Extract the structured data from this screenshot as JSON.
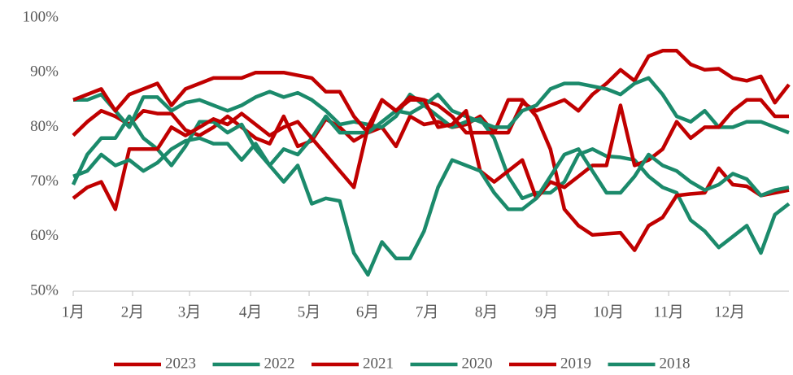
{
  "chart_data": {
    "type": "line",
    "x": [
      0,
      1,
      2,
      3,
      4,
      5,
      6,
      7,
      8,
      9,
      10,
      11,
      12,
      13,
      14,
      15,
      16,
      17,
      18,
      19,
      20,
      21,
      22,
      23,
      24,
      25,
      26,
      27,
      28,
      29,
      30,
      31,
      32,
      33,
      34,
      35,
      36,
      37,
      38,
      39,
      40,
      41,
      42,
      43,
      44,
      45,
      46,
      47,
      48,
      49,
      50,
      51
    ],
    "xlim": [
      0,
      51
    ],
    "xticks": [
      {
        "value": 0,
        "label": "1月"
      },
      {
        "value": 4.23,
        "label": "2月"
      },
      {
        "value": 8.29,
        "label": "3月"
      },
      {
        "value": 12.64,
        "label": "4月"
      },
      {
        "value": 16.81,
        "label": "5月"
      },
      {
        "value": 20.99,
        "label": "6月"
      },
      {
        "value": 25.22,
        "label": "7月"
      },
      {
        "value": 29.45,
        "label": "8月"
      },
      {
        "value": 33.74,
        "label": "9月"
      },
      {
        "value": 38.14,
        "label": "10月"
      },
      {
        "value": 42.43,
        "label": "11月"
      },
      {
        "value": 46.78,
        "label": "12月"
      }
    ],
    "ylim": [
      50,
      100
    ],
    "yticks": [
      {
        "value": 50,
        "label": "50%"
      },
      {
        "value": 60,
        "label": "60%"
      },
      {
        "value": 70,
        "label": "70%"
      },
      {
        "value": 80,
        "label": "80%"
      },
      {
        "value": 90,
        "label": "90%"
      },
      {
        "value": 100,
        "label": "100%"
      }
    ],
    "grid": false,
    "legend": "bottom",
    "series": [
      {
        "name": "2023",
        "color": "#c00000",
        "values": [
          78.5,
          81,
          83,
          82,
          80.5,
          83,
          82.5,
          82.5,
          79.5,
          78.5,
          80,
          82,
          80,
          78,
          77,
          82,
          76.5,
          77.5,
          81.5,
          80,
          77.5,
          79,
          80,
          76.5,
          82,
          80.5,
          81,
          80,
          80.5,
          82,
          79,
          79,
          84.5,
          83,
          84,
          85,
          83,
          86,
          88,
          90.5,
          88.5,
          93,
          94,
          94,
          91.5,
          90.5,
          90.7,
          89,
          88.5,
          89.3,
          84.5,
          87.8
        ]
      },
      {
        "name": "2022",
        "color": "#1b8a6b",
        "values": [
          85,
          85,
          86,
          83,
          80,
          85.5,
          85.5,
          83,
          84.5,
          85,
          84,
          83,
          84,
          85.5,
          86.5,
          85.5,
          86.3,
          85,
          83,
          80.5,
          81,
          80.5,
          80,
          82,
          86,
          84,
          82,
          80,
          81,
          81.5,
          78,
          71,
          67,
          68,
          68,
          70,
          75,
          76,
          74.7,
          74.5,
          74,
          71,
          69,
          68,
          63,
          61,
          58,
          60,
          62,
          57,
          64,
          66
        ]
      },
      {
        "name": "2021",
        "color": "#c00000",
        "values": [
          85,
          86,
          87,
          83,
          86,
          87,
          88,
          84,
          87,
          88,
          89,
          89,
          89,
          90,
          90,
          90,
          89.5,
          89,
          86.5,
          86.5,
          82,
          79,
          85,
          83,
          85,
          85,
          84,
          82,
          79,
          79,
          79,
          85,
          85,
          82,
          76,
          65,
          62,
          60.3,
          60.5,
          60.7,
          57.5,
          62,
          63.5,
          67.5,
          67.8,
          68,
          72.5,
          69.5,
          69.2,
          67.5,
          68,
          68.5
        ]
      },
      {
        "name": "2020",
        "color": "#1b8a6b",
        "values": [
          69.5,
          75,
          78,
          78,
          82,
          78,
          76,
          73,
          76.5,
          81,
          81,
          79,
          80.5,
          76,
          73,
          76,
          75,
          78,
          82,
          79,
          79,
          79,
          81,
          83,
          82.5,
          84,
          86,
          83,
          82,
          81,
          80,
          80,
          83,
          84,
          87,
          88,
          88,
          87.5,
          87,
          86,
          88,
          89,
          86,
          82,
          81,
          83,
          80,
          80,
          81,
          81,
          80,
          79
        ]
      },
      {
        "name": "2019",
        "color": "#c00000",
        "values": [
          67,
          69,
          70,
          65,
          76,
          76,
          76,
          80,
          78.5,
          80,
          81.5,
          80.5,
          82.5,
          80.5,
          78.5,
          80,
          81,
          78,
          75,
          72,
          69,
          80,
          85,
          83,
          85.5,
          85,
          80,
          80.5,
          83,
          72,
          70,
          72,
          74,
          67,
          70,
          69,
          71,
          73,
          73,
          84,
          73,
          74,
          76,
          81,
          78,
          80,
          80,
          83,
          85,
          85,
          82,
          82
        ]
      },
      {
        "name": "2018",
        "color": "#1b8a6b",
        "values": [
          71,
          72,
          75,
          73,
          74,
          72,
          73.5,
          76,
          77.5,
          78,
          77,
          77,
          74,
          77,
          73,
          70,
          73,
          66,
          67,
          66.5,
          57,
          53,
          59,
          56,
          56,
          61,
          69,
          74,
          73,
          72,
          68,
          65,
          65,
          67,
          71,
          75,
          76,
          72,
          68,
          68,
          71,
          75,
          73,
          72,
          70,
          68.5,
          69.5,
          71.5,
          70.5,
          67.5,
          68.5,
          69
        ]
      }
    ]
  }
}
